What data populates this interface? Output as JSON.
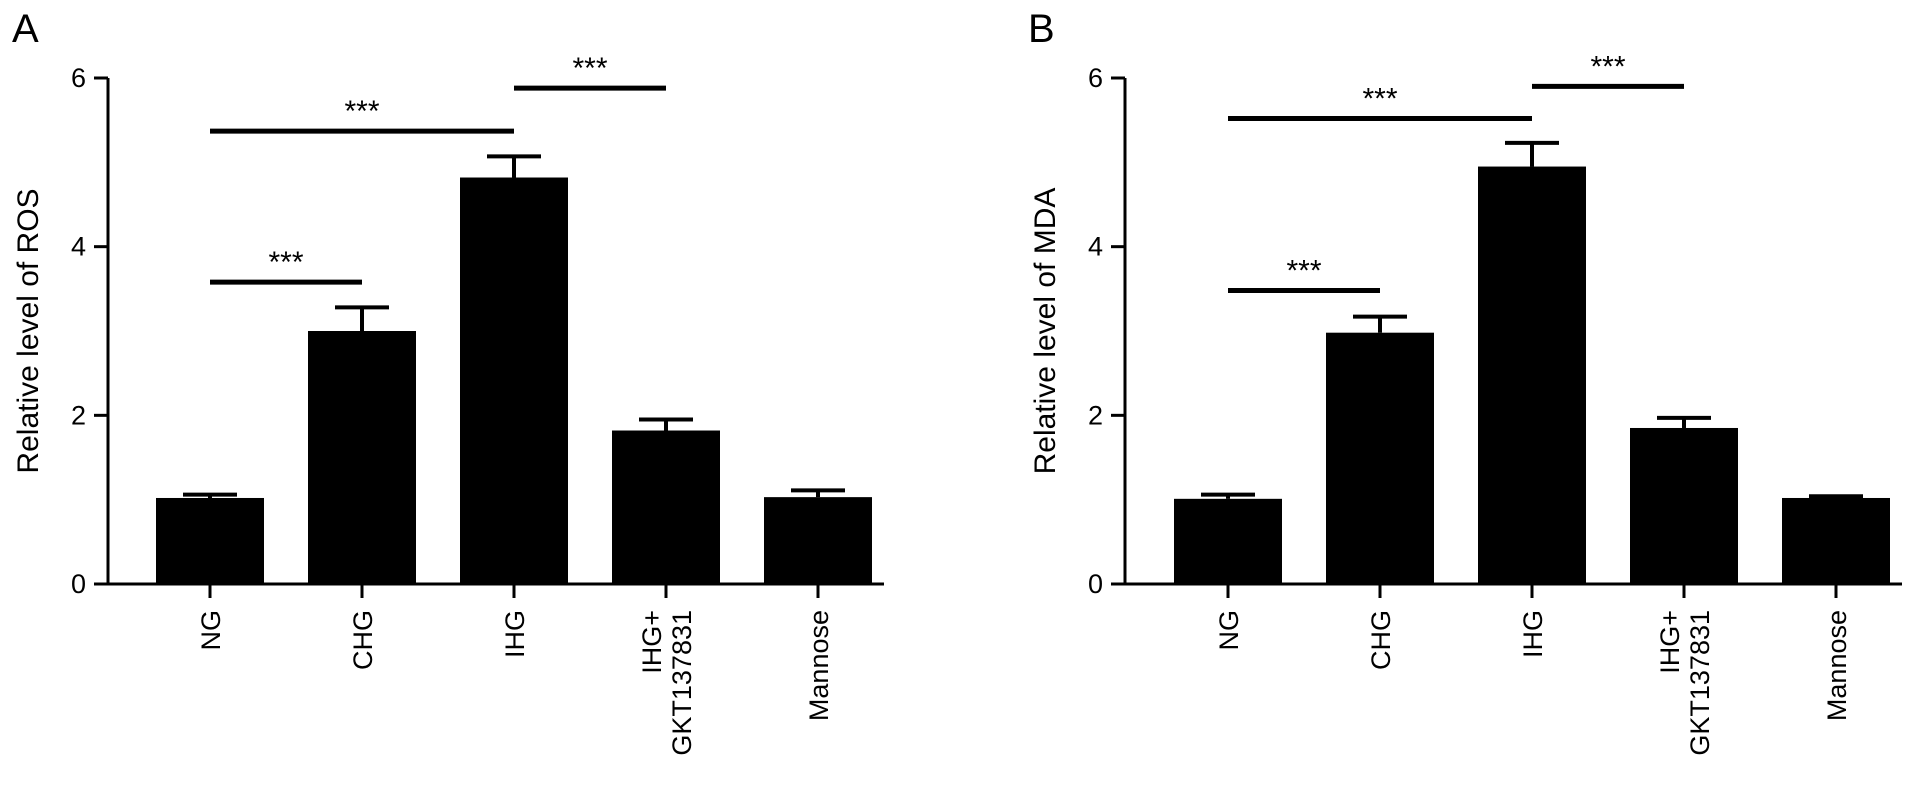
{
  "chart_data": [
    {
      "panel": "A",
      "type": "bar",
      "categories": [
        "NG",
        "CHG",
        "IHG",
        "IHG+\nGKT137831",
        "Mannose"
      ],
      "values": [
        1.02,
        3.0,
        4.82,
        1.82,
        1.03
      ],
      "errors": [
        0.04,
        0.28,
        0.25,
        0.13,
        0.08
      ],
      "xlabel": "",
      "ylabel": "Relative level of ROS",
      "ylim": [
        0,
        6
      ],
      "yticks": [
        0,
        2,
        4,
        6
      ],
      "color": "#000000",
      "significance": [
        {
          "from": 0,
          "to": 1,
          "y": 3.58,
          "label": "***"
        },
        {
          "from": 0,
          "to": 2,
          "y": 5.37,
          "label": "***"
        },
        {
          "from": 2,
          "to": 3,
          "y": 5.88,
          "label": "***"
        }
      ]
    },
    {
      "panel": "B",
      "type": "bar",
      "categories": [
        "NG",
        "CHG",
        "IHG",
        "IHG+\nGKT137831",
        "Mannose"
      ],
      "values": [
        1.01,
        2.98,
        4.95,
        1.85,
        1.02
      ],
      "errors": [
        0.05,
        0.19,
        0.28,
        0.12,
        0.02
      ],
      "xlabel": "",
      "ylabel": "Relative level of MDA",
      "ylim": [
        0,
        6
      ],
      "yticks": [
        0,
        2,
        4,
        6
      ],
      "color": "#000000",
      "significance": [
        {
          "from": 0,
          "to": 1,
          "y": 3.48,
          "label": "***"
        },
        {
          "from": 0,
          "to": 2,
          "y": 5.52,
          "label": "***"
        },
        {
          "from": 2,
          "to": 3,
          "y": 5.9,
          "label": "***"
        }
      ]
    }
  ]
}
